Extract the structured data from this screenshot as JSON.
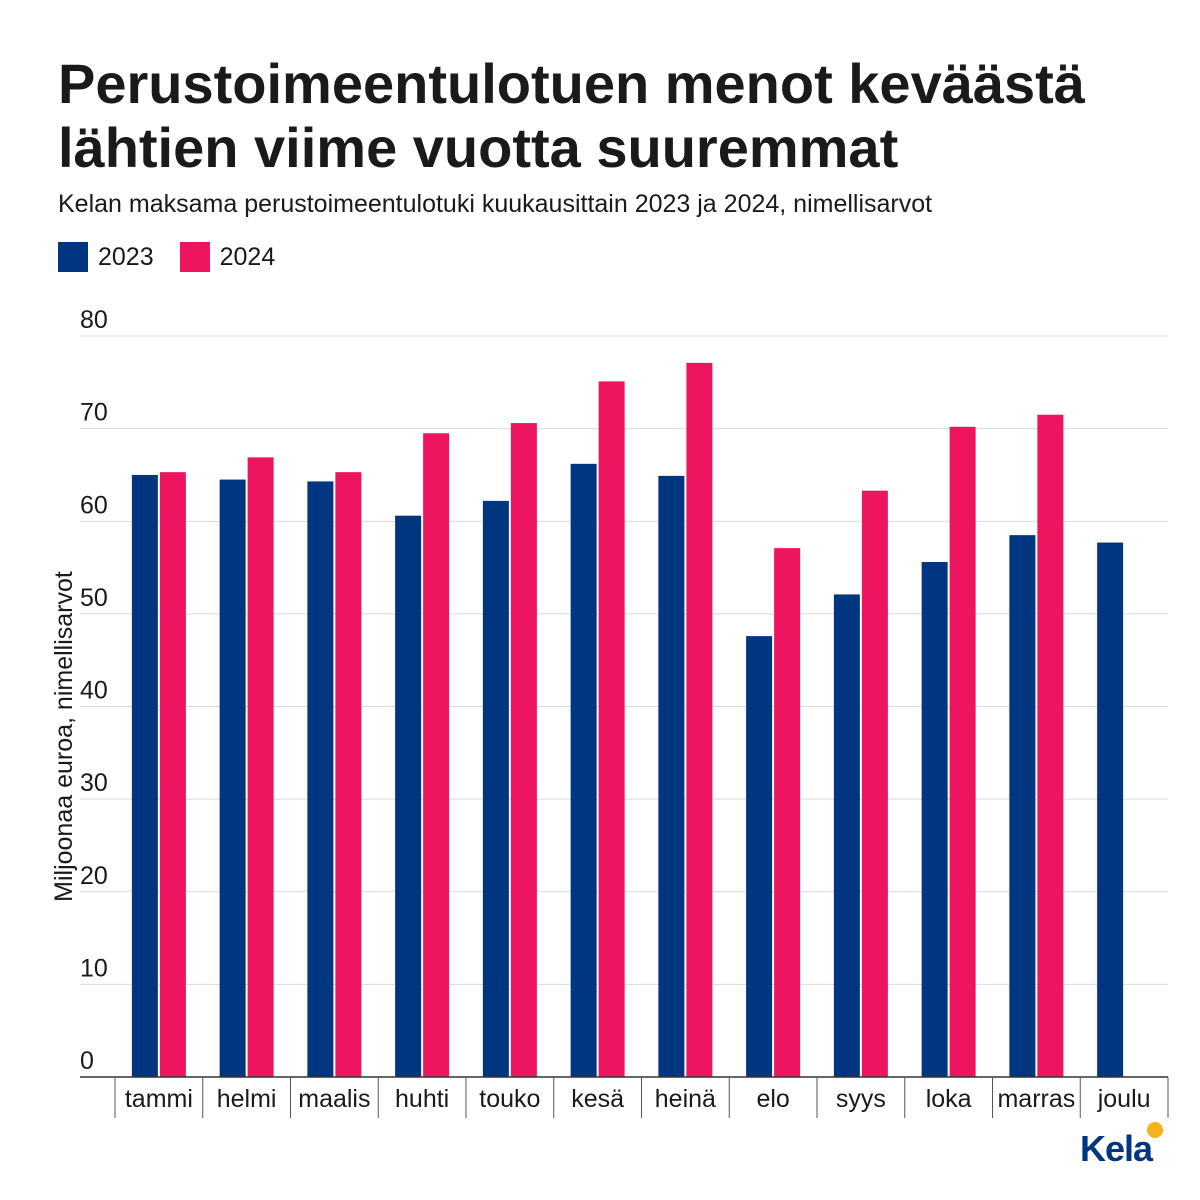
{
  "chart_data": {
    "type": "bar",
    "title": "Perustoimeentulotuen menot keväästä lähtien viime vuotta suuremmat",
    "subtitle": "Kelan maksama perustoimeentulotuki kuukausittain 2023 ja 2024, nimellisarvot",
    "ylabel": "Miljoonaa euroa, nimellisarvot",
    "xlabel": "",
    "ylim": [
      0,
      80
    ],
    "yticks": [
      0,
      10,
      20,
      30,
      40,
      50,
      60,
      70,
      80
    ],
    "grid": true,
    "legend_position": "top-left",
    "categories": [
      "tammi",
      "helmi",
      "maalis",
      "huhti",
      "touko",
      "kesä",
      "heinä",
      "elo",
      "syys",
      "loka",
      "marras",
      "joulu"
    ],
    "series": [
      {
        "name": "2023",
        "color": "#003580",
        "values": [
          65.0,
          64.5,
          64.3,
          60.6,
          62.2,
          66.2,
          64.9,
          47.6,
          52.1,
          55.6,
          58.5,
          57.7
        ]
      },
      {
        "name": "2024",
        "color": "#ee1560",
        "values": [
          65.3,
          66.9,
          65.3,
          69.5,
          70.6,
          75.1,
          77.1,
          57.1,
          63.3,
          70.2,
          71.5,
          null
        ]
      }
    ]
  },
  "logo": {
    "text": "Kela",
    "icon": "kela-logo-icon"
  }
}
